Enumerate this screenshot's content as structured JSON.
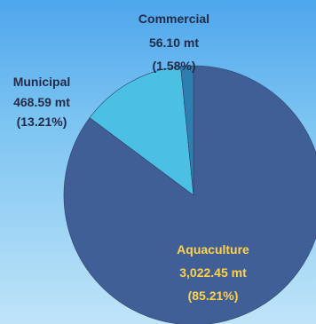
{
  "chart_data": {
    "type": "pie",
    "slices": [
      {
        "name": "Aquaculture",
        "value": 3022.45,
        "value_label": "3,022.45 mt",
        "percent": 85.21,
        "percent_label": "(85.21%)",
        "color": "#3f5f96",
        "label_color": "#ffd24a"
      },
      {
        "name": "Municipal",
        "value": 468.59,
        "value_label": "468.59 mt",
        "percent": 13.21,
        "percent_label": "(13.21%)",
        "color": "#4cc0e2",
        "label_color": "#232b47"
      },
      {
        "name": "Commercial",
        "value": 56.1,
        "value_label": "56.10 mt",
        "percent": 1.58,
        "percent_label": "(1.58%)",
        "color": "#2f7eb0",
        "label_color": "#232b47"
      }
    ],
    "start_angle": "12 o'clock",
    "direction": "clockwise",
    "legend": "none"
  }
}
